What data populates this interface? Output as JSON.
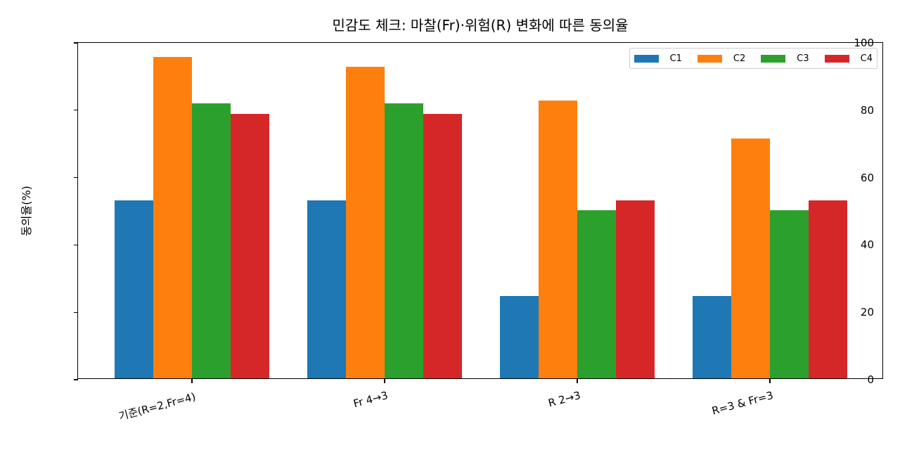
{
  "chart_data": {
    "type": "bar",
    "title": "민감도 체크: 마찰(Fr)·위험(R) 변화에 따른 동의율",
    "xlabel": "",
    "ylabel": "동의율(%)",
    "ylim": [
      0,
      100
    ],
    "yticks": [
      0,
      20,
      40,
      60,
      80,
      100
    ],
    "grid": false,
    "legend_position": "upper right",
    "categories": [
      "기준(R=2,Fr=4)",
      "Fr 4→3",
      "R 2→3",
      "R=3 & Fr=3"
    ],
    "series": [
      {
        "name": "C1",
        "color": "#1f77b4",
        "values": [
          52.9,
          52.9,
          24.5,
          24.5
        ]
      },
      {
        "name": "C2",
        "color": "#ff7f0e",
        "values": [
          95.5,
          92.5,
          82.5,
          71.1
        ]
      },
      {
        "name": "C3",
        "color": "#2ca02c",
        "values": [
          81.6,
          81.6,
          50.0,
          50.0
        ]
      },
      {
        "name": "C4",
        "color": "#d62728",
        "values": [
          78.6,
          78.6,
          52.9,
          52.9
        ]
      }
    ]
  }
}
